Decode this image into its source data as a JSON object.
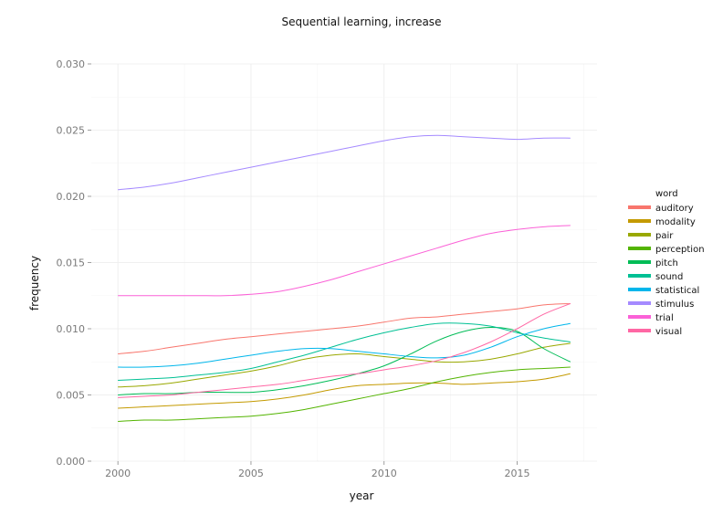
{
  "chart_data": {
    "type": "line",
    "title": "Sequential learning, increase",
    "xlabel": "year",
    "ylabel": "frequency",
    "xlim": [
      1999,
      2018
    ],
    "ylim": [
      0.0,
      0.03
    ],
    "x_ticks": [
      2000,
      2005,
      2010,
      2015
    ],
    "x_tick_labels": [
      "2000",
      "2005",
      "2010",
      "2015"
    ],
    "y_ticks": [
      0.0,
      0.005,
      0.01,
      0.015,
      0.02,
      0.025,
      0.03
    ],
    "y_tick_labels": [
      "0.000",
      "0.005",
      "0.010",
      "0.015",
      "0.020",
      "0.025",
      "0.030"
    ],
    "grid": true,
    "legend_title": "word",
    "legend_position": "right",
    "x": [
      2000,
      2001,
      2002,
      2003,
      2004,
      2005,
      2006,
      2007,
      2008,
      2009,
      2010,
      2011,
      2012,
      2013,
      2014,
      2015,
      2016,
      2017
    ],
    "series": [
      {
        "name": "auditory",
        "color": "#F8766D",
        "values": [
          0.0081,
          0.0083,
          0.0086,
          0.0089,
          0.0092,
          0.0094,
          0.0096,
          0.0098,
          0.01,
          0.0102,
          0.0105,
          0.0108,
          0.0109,
          0.0111,
          0.0113,
          0.0115,
          0.0118,
          0.0119
        ]
      },
      {
        "name": "modality",
        "color": "#C49A00",
        "values": [
          0.004,
          0.0041,
          0.0042,
          0.0043,
          0.0044,
          0.0045,
          0.0047,
          0.005,
          0.0054,
          0.0057,
          0.0058,
          0.0059,
          0.0059,
          0.0058,
          0.0059,
          0.006,
          0.0062,
          0.0066
        ]
      },
      {
        "name": "pair",
        "color": "#99A800",
        "values": [
          0.0056,
          0.0057,
          0.0059,
          0.0062,
          0.0065,
          0.0068,
          0.0072,
          0.0077,
          0.008,
          0.0081,
          0.0079,
          0.0077,
          0.0075,
          0.0075,
          0.0077,
          0.0081,
          0.0086,
          0.0089
        ]
      },
      {
        "name": "perception",
        "color": "#53B400",
        "values": [
          0.003,
          0.0031,
          0.0031,
          0.0032,
          0.0033,
          0.0034,
          0.0036,
          0.0039,
          0.0043,
          0.0047,
          0.0051,
          0.0055,
          0.006,
          0.0064,
          0.0067,
          0.0069,
          0.007,
          0.0071
        ]
      },
      {
        "name": "pitch",
        "color": "#00BC56",
        "values": [
          0.005,
          0.0051,
          0.0051,
          0.0052,
          0.0052,
          0.0052,
          0.0054,
          0.0057,
          0.0061,
          0.0066,
          0.0072,
          0.0081,
          0.0091,
          0.0098,
          0.0101,
          0.0098,
          0.0085,
          0.0075
        ]
      },
      {
        "name": "sound",
        "color": "#00C094",
        "values": [
          0.0061,
          0.0062,
          0.0063,
          0.0065,
          0.0067,
          0.007,
          0.0075,
          0.008,
          0.0086,
          0.0092,
          0.0097,
          0.0101,
          0.0104,
          0.0104,
          0.0102,
          0.0097,
          0.0093,
          0.009
        ]
      },
      {
        "name": "statistical",
        "color": "#00B6EB",
        "values": [
          0.0071,
          0.0071,
          0.0072,
          0.0074,
          0.0077,
          0.008,
          0.0083,
          0.0085,
          0.0085,
          0.0083,
          0.0081,
          0.0079,
          0.0078,
          0.008,
          0.0086,
          0.0094,
          0.01,
          0.0104
        ]
      },
      {
        "name": "stimulus",
        "color": "#A58AFF",
        "values": [
          0.0205,
          0.0207,
          0.021,
          0.0214,
          0.0218,
          0.0222,
          0.0226,
          0.023,
          0.0234,
          0.0238,
          0.0242,
          0.0245,
          0.0246,
          0.0245,
          0.0244,
          0.0243,
          0.0244,
          0.0244
        ]
      },
      {
        "name": "trial",
        "color": "#FB61D7",
        "values": [
          0.0125,
          0.0125,
          0.0125,
          0.0125,
          0.0125,
          0.0126,
          0.0128,
          0.0132,
          0.0137,
          0.0143,
          0.0149,
          0.0155,
          0.0161,
          0.0167,
          0.0172,
          0.0175,
          0.0177,
          0.0178
        ]
      },
      {
        "name": "visual",
        "color": "#FF67A4",
        "values": [
          0.0048,
          0.0049,
          0.005,
          0.0052,
          0.0054,
          0.0056,
          0.0058,
          0.0061,
          0.0064,
          0.0066,
          0.0069,
          0.0072,
          0.0076,
          0.0082,
          0.009,
          0.01,
          0.0111,
          0.0119
        ]
      }
    ]
  }
}
